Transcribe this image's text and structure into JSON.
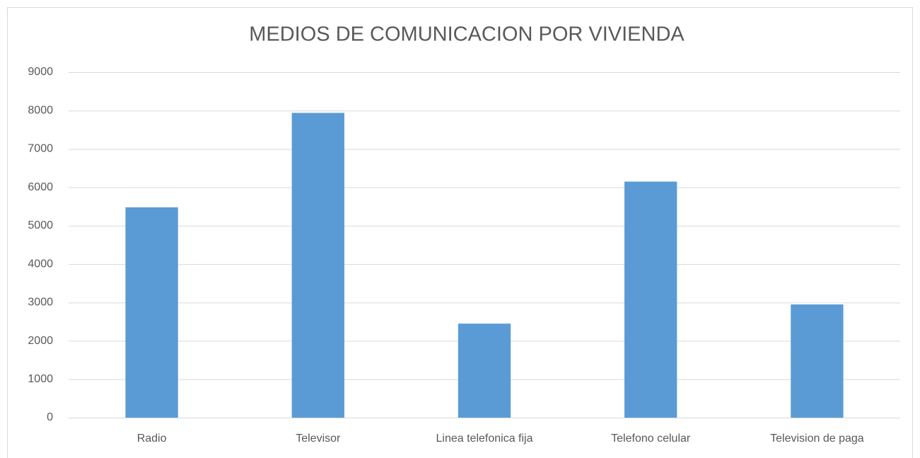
{
  "chart_data": {
    "type": "bar",
    "title": "MEDIOS DE COMUNICACION POR VIVIENDA",
    "categories": [
      "Radio",
      "Televisor",
      "Linea telefonica fija",
      "Telefono celular",
      "Television de paga"
    ],
    "values": [
      5480,
      7940,
      2450,
      6150,
      2950
    ],
    "color": "#5b9bd5",
    "ylim": [
      0,
      9000
    ],
    "yticks": [
      0,
      1000,
      2000,
      3000,
      4000,
      5000,
      6000,
      7000,
      8000,
      9000
    ],
    "grid": true
  }
}
